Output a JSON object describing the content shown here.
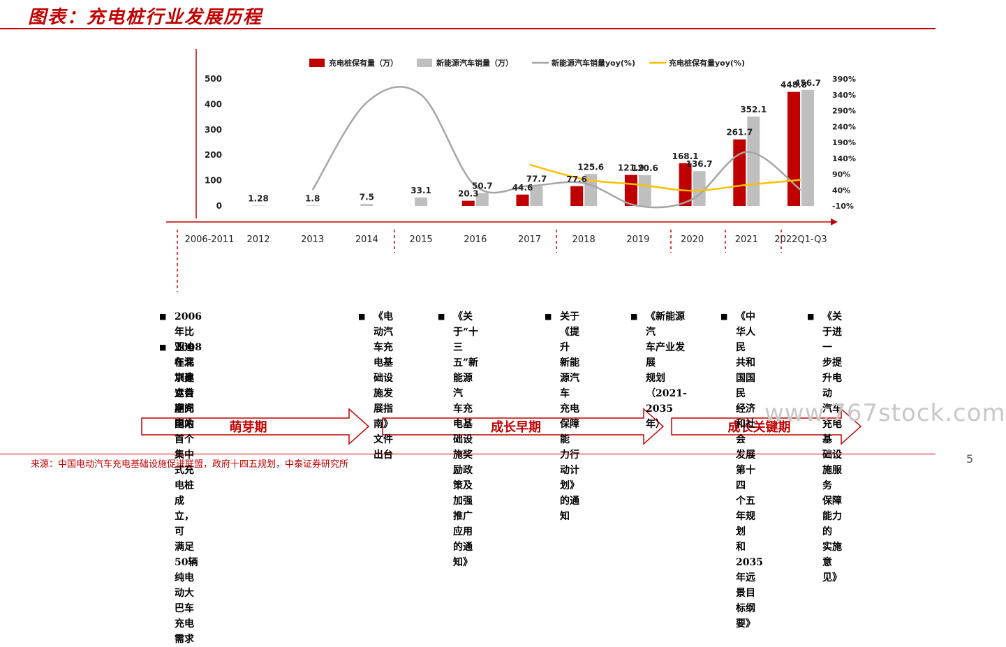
{
  "header": {
    "title": "图表：充电桩行业发展历程"
  },
  "footer": {
    "source": "来源：中国电动汽车充电基础设施促进联盟，政府十四五规划，中泰证券研究所",
    "page": "5"
  },
  "watermark": "www.767stock.com",
  "colors": {
    "accent": "#c00000",
    "sales_bar": "#bfbfbf",
    "sales_yoy_line": "#a6a6a6",
    "pile_yoy_line": "#ffc000"
  },
  "chart_data": {
    "type": "bar",
    "categories": [
      "2012",
      "2013",
      "2014",
      "2015",
      "2016",
      "2017",
      "2018",
      "2019",
      "2020",
      "2021",
      "2022Q1-Q3"
    ],
    "series": [
      {
        "name": "充电桩保有量（万）",
        "kind": "bar",
        "axis": "left",
        "values": [
          null,
          null,
          null,
          null,
          20.3,
          44.6,
          77.6,
          121.9,
          168.1,
          261.7,
          448.8
        ],
        "labels": [
          "",
          "",
          "",
          "",
          "20.3",
          "44.6",
          "77.6",
          "121.9",
          "168.1",
          "261.7",
          "448.8"
        ]
      },
      {
        "name": "新能源汽车销量（万）",
        "kind": "bar",
        "axis": "left",
        "values": [
          1.28,
          1.8,
          7.5,
          33.1,
          50.7,
          77.7,
          125.6,
          120.6,
          136.7,
          352.1,
          456.7
        ],
        "labels": [
          "1.28",
          "1.8",
          "7.5",
          "33.1",
          "50.7",
          "77.7",
          "125.6",
          "120.6",
          "136.7",
          "352.1",
          "456.7"
        ]
      },
      {
        "name": "新能源汽车销量yoy(%)",
        "kind": "line",
        "axis": "right",
        "values": [
          null,
          40,
          316,
          340,
          53,
          53,
          62,
          -10,
          11,
          160,
          40
        ]
      },
      {
        "name": "充电桩保有量yoy(%)",
        "kind": "line",
        "axis": "right",
        "values": [
          null,
          null,
          null,
          null,
          null,
          120,
          74,
          57,
          38,
          56,
          72
        ]
      }
    ],
    "yaxis_left": {
      "ticks": [
        "0",
        "100",
        "200",
        "300",
        "400",
        "500"
      ],
      "range": [
        0,
        500
      ]
    },
    "yaxis_right": {
      "ticks": [
        "-10%",
        "40%",
        "90%",
        "140%",
        "190%",
        "240%",
        "290%",
        "340%",
        "390%"
      ],
      "range": [
        -10,
        390
      ]
    },
    "legend_position": "top",
    "grid": false
  },
  "timeline": {
    "years": [
      "2006-2011",
      "2012",
      "2013",
      "2014",
      "2015",
      "2016",
      "2017",
      "2018",
      "2019",
      "2020",
      "2021",
      "2022Q1-Q3"
    ]
  },
  "events": [
    {
      "text": "2006年比亚迪在深圳建立首\n座充电站"
    },
    {
      "text": "2008年北京奥运会期间国内\n首个集中式充电桩成立，可\n满足50辆纯电动大巴车充电\n需求"
    },
    {
      "text": "《电动汽\n车充电基\n础设施发\n展指南》\n文件出台"
    },
    {
      "text": "《关于“十三\n五”新能源汽\n车充电基础设\n施奖励政策及\n加强推广应用\n的通知》"
    },
    {
      "text": "关于《提升\n新能源汽车\n充电保障能\n力行动计划》\n的通知"
    },
    {
      "text": "《新能源汽\n车产业发展\n规划\n（2021-2035年）"
    },
    {
      "text": "《中华人民\n共和国国民\n经济和社会\n发展第十四\n个五年规划\n和2035年远\n景目标纲要》"
    },
    {
      "text": "《关于进一\n步提升电动\n汽车充电基\n础设施服务\n保障能力的\n实施意见》"
    }
  ],
  "phases": [
    {
      "label": "萌芽期"
    },
    {
      "label": "成长早期"
    },
    {
      "label": "成长关键期"
    }
  ]
}
